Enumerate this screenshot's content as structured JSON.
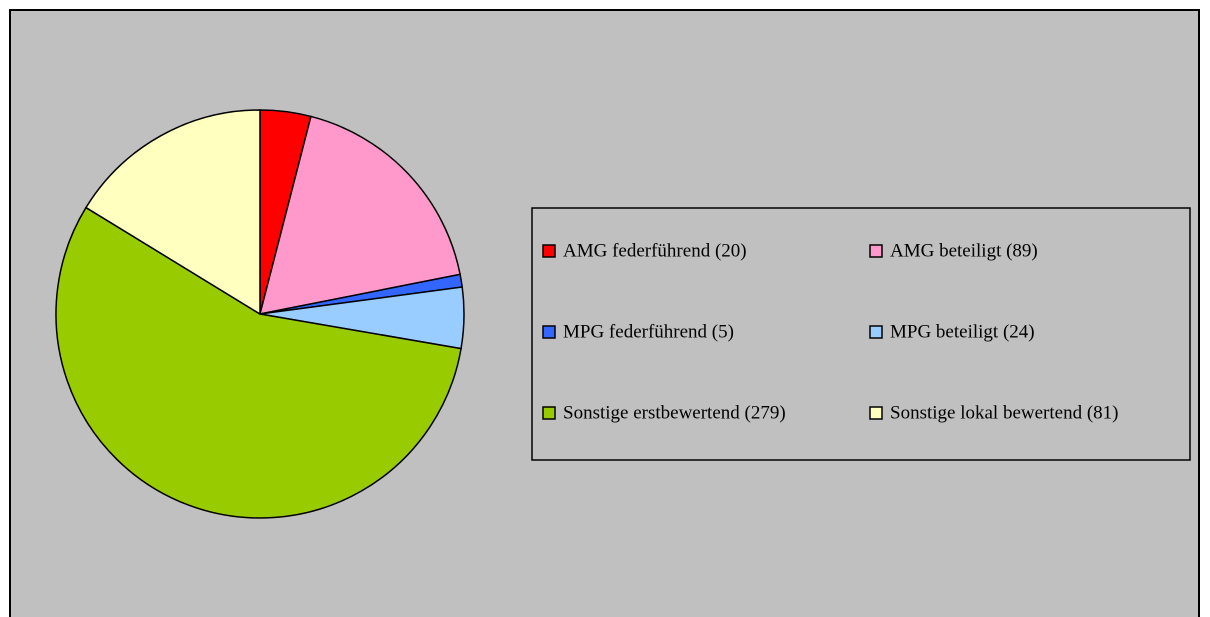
{
  "chart_data": {
    "type": "pie",
    "categories": [
      "AMG federführend (20)",
      "AMG beteiligt (89)",
      "MPG federführend (5)",
      "MPG beteiligt (24)",
      "Sonstige erstbewertend (279)",
      "Sonstige lokal bewertend (81)"
    ],
    "values": [
      20,
      89,
      5,
      24,
      279,
      81
    ],
    "colors": [
      "#ff0000",
      "#ff99cc",
      "#3366ff",
      "#99ccff",
      "#99cc00",
      "#ffffc0"
    ],
    "legend": "right"
  }
}
